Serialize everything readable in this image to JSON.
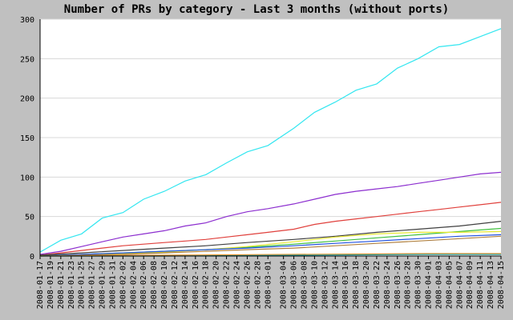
{
  "chart_data": {
    "type": "line",
    "title": "Number of PRs by category - Last 3 months (without ports)",
    "xlabel": "",
    "ylabel": "",
    "ylim": [
      0,
      300
    ],
    "yticks": [
      0,
      50,
      100,
      150,
      200,
      250,
      300
    ],
    "grid": true,
    "legend": "none",
    "x_start": "2008-01-17",
    "x_end": "2008-04-15",
    "x_tick_labels": [
      "2008-01-17",
      "2008-01-19",
      "2008-01-21",
      "2008-01-23",
      "2008-01-25",
      "2008-01-27",
      "2008-01-29",
      "2008-01-31",
      "2008-02-02",
      "2008-02-04",
      "2008-02-06",
      "2008-02-08",
      "2008-02-10",
      "2008-02-12",
      "2008-02-14",
      "2008-02-16",
      "2008-02-18",
      "2008-02-20",
      "2008-02-22",
      "2008-02-24",
      "2008-02-26",
      "2008-02-28",
      "2008-03-01",
      "2008-03-04",
      "2008-03-06",
      "2008-03-08",
      "2008-03-10",
      "2008-03-12",
      "2008-03-14",
      "2008-03-16",
      "2008-03-18",
      "2008-03-20",
      "2008-03-22",
      "2008-03-24",
      "2008-03-26",
      "2008-03-28",
      "2008-03-30",
      "2008-04-01",
      "2008-04-03",
      "2008-04-05",
      "2008-04-07",
      "2008-04-09",
      "2008-04-11",
      "2008-04-13",
      "2008-04-15"
    ],
    "series": [
      {
        "color": "#33e6f0",
        "x": [
          "2008-01-17",
          "2008-01-21",
          "2008-01-25",
          "2008-01-29",
          "2008-02-02",
          "2008-02-06",
          "2008-02-10",
          "2008-02-14",
          "2008-02-18",
          "2008-02-22",
          "2008-02-26",
          "2008-03-01",
          "2008-03-06",
          "2008-03-10",
          "2008-03-14",
          "2008-03-18",
          "2008-03-22",
          "2008-03-26",
          "2008-03-30",
          "2008-04-03",
          "2008-04-07",
          "2008-04-11",
          "2008-04-15"
        ],
        "values": [
          5,
          20,
          28,
          48,
          55,
          72,
          82,
          95,
          103,
          118,
          132,
          140,
          162,
          182,
          195,
          210,
          218,
          238,
          250,
          265,
          268,
          278,
          288
        ]
      },
      {
        "color": "#8c2ecf",
        "x": [
          "2008-01-17",
          "2008-01-21",
          "2008-01-25",
          "2008-01-29",
          "2008-02-02",
          "2008-02-06",
          "2008-02-10",
          "2008-02-14",
          "2008-02-18",
          "2008-02-22",
          "2008-02-26",
          "2008-03-01",
          "2008-03-06",
          "2008-03-10",
          "2008-03-14",
          "2008-03-18",
          "2008-03-22",
          "2008-03-26",
          "2008-03-30",
          "2008-04-03",
          "2008-04-07",
          "2008-04-11",
          "2008-04-15"
        ],
        "values": [
          2,
          6,
          12,
          18,
          24,
          28,
          32,
          38,
          42,
          50,
          56,
          60,
          66,
          72,
          78,
          82,
          85,
          88,
          92,
          96,
          100,
          104,
          106
        ]
      },
      {
        "color": "#e0403c",
        "x": [
          "2008-01-17",
          "2008-01-21",
          "2008-01-25",
          "2008-01-29",
          "2008-02-02",
          "2008-02-06",
          "2008-02-10",
          "2008-02-14",
          "2008-02-18",
          "2008-02-22",
          "2008-02-26",
          "2008-03-01",
          "2008-03-06",
          "2008-03-10",
          "2008-03-14",
          "2008-03-18",
          "2008-03-22",
          "2008-03-26",
          "2008-03-30",
          "2008-04-03",
          "2008-04-07",
          "2008-04-11",
          "2008-04-15"
        ],
        "values": [
          1,
          4,
          7,
          10,
          13,
          15,
          17,
          19,
          21,
          24,
          27,
          30,
          34,
          40,
          44,
          47,
          50,
          53,
          56,
          59,
          62,
          65,
          68
        ]
      },
      {
        "color": "#404040",
        "x": [
          "2008-01-17",
          "2008-01-25",
          "2008-02-02",
          "2008-02-10",
          "2008-02-18",
          "2008-02-26",
          "2008-03-06",
          "2008-03-14",
          "2008-03-22",
          "2008-03-30",
          "2008-04-07",
          "2008-04-15"
        ],
        "values": [
          1,
          4,
          7,
          10,
          13,
          17,
          21,
          25,
          30,
          34,
          38,
          44
        ]
      },
      {
        "color": "#40c040",
        "x": [
          "2008-01-17",
          "2008-01-25",
          "2008-02-02",
          "2008-02-10",
          "2008-02-18",
          "2008-02-26",
          "2008-03-06",
          "2008-03-14",
          "2008-03-22",
          "2008-03-30",
          "2008-04-07",
          "2008-04-15"
        ],
        "values": [
          0,
          2,
          4,
          6,
          8,
          11,
          15,
          19,
          23,
          27,
          31,
          35
        ]
      },
      {
        "color": "#e8e830",
        "x": [
          "2008-01-17",
          "2008-01-25",
          "2008-02-02",
          "2008-02-10",
          "2008-02-18",
          "2008-02-26",
          "2008-03-06",
          "2008-03-14",
          "2008-03-22",
          "2008-03-30",
          "2008-04-07",
          "2008-04-15"
        ],
        "values": [
          0,
          1,
          3,
          5,
          8,
          12,
          18,
          24,
          28,
          30,
          30,
          31
        ]
      },
      {
        "color": "#2050e0",
        "x": [
          "2008-01-17",
          "2008-01-25",
          "2008-02-02",
          "2008-02-10",
          "2008-02-18",
          "2008-02-26",
          "2008-03-06",
          "2008-03-14",
          "2008-03-22",
          "2008-03-30",
          "2008-04-07",
          "2008-04-15"
        ],
        "values": [
          0,
          2,
          4,
          6,
          8,
          10,
          13,
          16,
          19,
          22,
          25,
          27
        ]
      },
      {
        "color": "#b08040",
        "x": [
          "2008-01-17",
          "2008-01-25",
          "2008-02-02",
          "2008-02-10",
          "2008-02-18",
          "2008-02-26",
          "2008-03-06",
          "2008-03-14",
          "2008-03-22",
          "2008-03-30",
          "2008-04-07",
          "2008-04-15"
        ],
        "values": [
          0,
          1,
          2,
          4,
          6,
          8,
          10,
          13,
          16,
          19,
          22,
          25
        ]
      },
      {
        "color": "#ff9020",
        "x": [
          "2008-01-17",
          "2008-02-10",
          "2008-03-06",
          "2008-04-01",
          "2008-04-15"
        ],
        "values": [
          0,
          1,
          2,
          3,
          3
        ]
      },
      {
        "color": "#20a0a0",
        "x": [
          "2008-01-17",
          "2008-02-10",
          "2008-03-06",
          "2008-04-01",
          "2008-04-15"
        ],
        "values": [
          0,
          0,
          1,
          2,
          2
        ]
      }
    ]
  }
}
